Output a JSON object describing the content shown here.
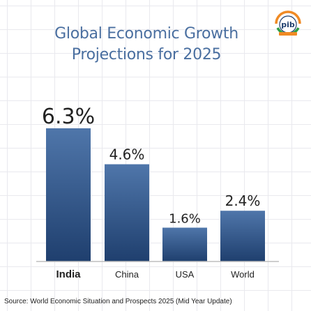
{
  "title_line1": "Global Economic Growth",
  "title_line2": "Projections for 2025",
  "source": "Source: World Economic Situation and Prospects 2025 (Mid Year Update)",
  "logo": {
    "icon": "pib-logo-icon",
    "text": "pib"
  },
  "colors": {
    "title": "#4a6fa0",
    "bar_top": "#4f76aa",
    "bar_bottom": "#1f3f6e",
    "axis": "#bdbdbd",
    "label": "#222222"
  },
  "chart_data": {
    "type": "bar",
    "categories": [
      "India",
      "China",
      "USA",
      "World"
    ],
    "values": [
      6.3,
      4.6,
      1.6,
      2.4
    ],
    "value_labels": [
      "6.3%",
      "4.6%",
      "1.6%",
      "2.4%"
    ],
    "title": "Global Economic Growth Projections for 2025",
    "xlabel": "",
    "ylabel": "",
    "ylim": [
      0,
      6.3
    ],
    "grid": false,
    "legend": "none"
  }
}
